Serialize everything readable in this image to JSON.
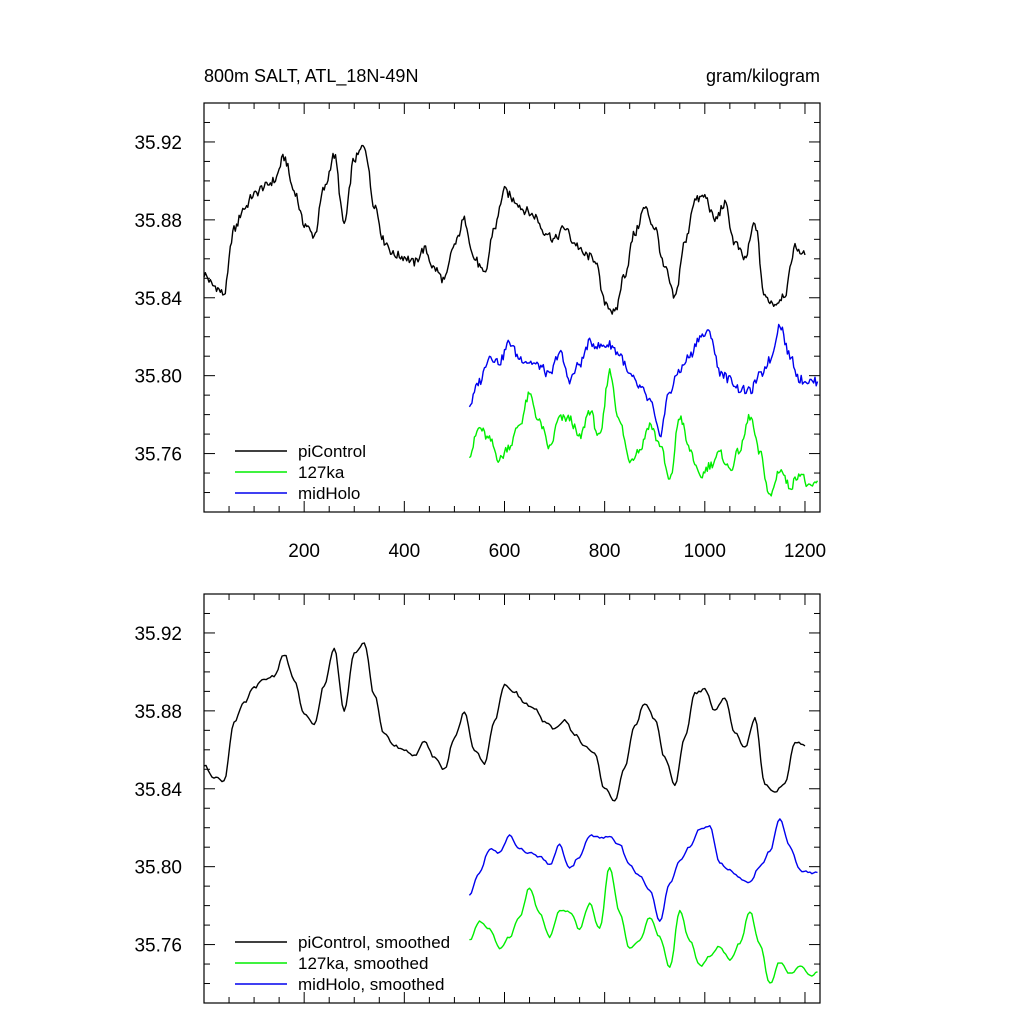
{
  "chart_data": [
    {
      "type": "line",
      "title": "800m SALT, ATL_18N-49N",
      "units": "gram/kilogram",
      "xlim": [
        0,
        1230
      ],
      "ylim": [
        35.73,
        35.94
      ],
      "xticks": [
        200,
        400,
        600,
        800,
        1000,
        1200
      ],
      "yticks": [
        35.76,
        35.8,
        35.84,
        35.88,
        35.92
      ],
      "ytick_labels": [
        "35.76",
        "35.80",
        "35.84",
        "35.88",
        "35.92"
      ],
      "xtick_labels": [
        "200",
        "400",
        "600",
        "800",
        "1000",
        "1200"
      ],
      "legend_position": "bottom-left",
      "series": [
        {
          "name": "piControl",
          "color": "#000000",
          "x": [
            0,
            20,
            40,
            60,
            80,
            100,
            120,
            140,
            160,
            180,
            200,
            220,
            240,
            260,
            280,
            300,
            320,
            340,
            360,
            380,
            400,
            420,
            440,
            460,
            480,
            500,
            520,
            540,
            560,
            580,
            600,
            620,
            640,
            660,
            680,
            700,
            720,
            740,
            760,
            780,
            800,
            820,
            840,
            860,
            880,
            900,
            920,
            940,
            960,
            980,
            1000,
            1020,
            1040,
            1060,
            1080,
            1100,
            1120,
            1140,
            1160,
            1180,
            1200
          ],
          "values": [
            35.852,
            35.846,
            35.842,
            35.875,
            35.886,
            35.893,
            35.897,
            35.9,
            35.912,
            35.895,
            35.878,
            35.872,
            35.896,
            35.913,
            35.878,
            35.911,
            35.918,
            35.888,
            35.869,
            35.862,
            35.861,
            35.858,
            35.865,
            35.855,
            35.849,
            35.867,
            35.88,
            35.86,
            35.852,
            35.876,
            35.895,
            35.89,
            35.885,
            35.882,
            35.874,
            35.87,
            35.876,
            35.868,
            35.862,
            35.86,
            35.838,
            35.832,
            35.852,
            35.873,
            35.886,
            35.876,
            35.855,
            35.84,
            35.868,
            35.89,
            35.892,
            35.88,
            35.888,
            35.868,
            35.86,
            35.878,
            35.84,
            35.837,
            35.842,
            35.866,
            35.862
          ]
        },
        {
          "name": "127ka",
          "color": "#00ee00",
          "x": [
            530,
            550,
            570,
            590,
            610,
            630,
            650,
            670,
            690,
            710,
            730,
            750,
            770,
            790,
            810,
            830,
            850,
            870,
            890,
            910,
            930,
            950,
            970,
            990,
            1010,
            1030,
            1050,
            1070,
            1090,
            1110,
            1130,
            1150,
            1170,
            1190,
            1210,
            1225
          ],
          "values": [
            35.76,
            35.773,
            35.767,
            35.757,
            35.764,
            35.775,
            35.79,
            35.776,
            35.763,
            35.778,
            35.778,
            35.768,
            35.782,
            35.768,
            35.802,
            35.776,
            35.757,
            35.762,
            35.775,
            35.765,
            35.746,
            35.779,
            35.762,
            35.748,
            35.754,
            35.76,
            35.752,
            35.762,
            35.779,
            35.76,
            35.738,
            35.752,
            35.743,
            35.75,
            35.742,
            35.746
          ]
        },
        {
          "name": "midHolo",
          "color": "#0000ee",
          "x": [
            530,
            550,
            570,
            590,
            610,
            630,
            650,
            670,
            690,
            710,
            730,
            750,
            770,
            790,
            810,
            830,
            850,
            870,
            890,
            910,
            930,
            950,
            970,
            990,
            1010,
            1030,
            1050,
            1070,
            1090,
            1110,
            1130,
            1150,
            1170,
            1190,
            1210,
            1225
          ],
          "values": [
            35.785,
            35.797,
            35.81,
            35.807,
            35.817,
            35.809,
            35.807,
            35.805,
            35.8,
            35.812,
            35.798,
            35.806,
            35.817,
            35.815,
            35.816,
            35.811,
            35.8,
            35.794,
            35.787,
            35.77,
            35.792,
            35.803,
            35.81,
            35.82,
            35.822,
            35.802,
            35.798,
            35.793,
            35.792,
            35.8,
            35.808,
            35.826,
            35.81,
            35.798,
            35.797,
            35.797
          ]
        }
      ]
    },
    {
      "type": "line",
      "xlim": [
        0,
        1230
      ],
      "ylim": [
        35.73,
        35.94
      ],
      "yticks": [
        35.76,
        35.8,
        35.84,
        35.88,
        35.92
      ],
      "ytick_labels": [
        "35.76",
        "35.80",
        "35.84",
        "35.88",
        "35.92"
      ],
      "legend_position": "bottom-left",
      "series": [
        {
          "name": "piControl, smoothed",
          "color": "#000000",
          "x": [
            0,
            20,
            40,
            60,
            80,
            100,
            120,
            140,
            160,
            180,
            200,
            220,
            240,
            260,
            280,
            300,
            320,
            340,
            360,
            380,
            400,
            420,
            440,
            460,
            480,
            500,
            520,
            540,
            560,
            580,
            600,
            620,
            640,
            660,
            680,
            700,
            720,
            740,
            760,
            780,
            800,
            820,
            840,
            860,
            880,
            900,
            920,
            940,
            960,
            980,
            1000,
            1020,
            1040,
            1060,
            1080,
            1100,
            1120,
            1140,
            1160,
            1180,
            1200
          ],
          "values": [
            35.852,
            35.846,
            35.844,
            35.874,
            35.884,
            35.892,
            35.896,
            35.898,
            35.909,
            35.896,
            35.878,
            35.873,
            35.893,
            35.912,
            35.88,
            35.91,
            35.915,
            35.888,
            35.868,
            35.862,
            35.86,
            35.857,
            35.864,
            35.856,
            35.85,
            35.866,
            35.879,
            35.86,
            35.853,
            35.875,
            35.893,
            35.89,
            35.884,
            35.881,
            35.874,
            35.871,
            35.875,
            35.868,
            35.862,
            35.858,
            35.84,
            35.834,
            35.851,
            35.872,
            35.884,
            35.876,
            35.856,
            35.842,
            35.866,
            35.889,
            35.891,
            35.88,
            35.887,
            35.869,
            35.861,
            35.876,
            35.842,
            35.838,
            35.843,
            35.864,
            35.862
          ]
        },
        {
          "name": "127ka, smoothed",
          "color": "#00ee00",
          "x": [
            530,
            550,
            570,
            590,
            610,
            630,
            650,
            670,
            690,
            710,
            730,
            750,
            770,
            790,
            810,
            830,
            850,
            870,
            890,
            910,
            930,
            950,
            970,
            990,
            1010,
            1030,
            1050,
            1070,
            1090,
            1110,
            1130,
            1150,
            1170,
            1190,
            1210,
            1225
          ],
          "values": [
            35.762,
            35.772,
            35.768,
            35.758,
            35.764,
            35.774,
            35.789,
            35.776,
            35.764,
            35.777,
            35.777,
            35.768,
            35.781,
            35.768,
            35.8,
            35.776,
            35.758,
            35.762,
            35.774,
            35.764,
            35.748,
            35.777,
            35.762,
            35.749,
            35.754,
            35.759,
            35.752,
            35.761,
            35.777,
            35.76,
            35.74,
            35.751,
            35.745,
            35.749,
            35.744,
            35.746
          ]
        },
        {
          "name": "midHolo, smoothed",
          "color": "#0000ee",
          "x": [
            530,
            550,
            570,
            590,
            610,
            630,
            650,
            670,
            690,
            710,
            730,
            750,
            770,
            790,
            810,
            830,
            850,
            870,
            890,
            910,
            930,
            950,
            970,
            990,
            1010,
            1030,
            1050,
            1070,
            1090,
            1110,
            1130,
            1150,
            1170,
            1190,
            1210,
            1225
          ],
          "values": [
            35.785,
            35.797,
            35.809,
            35.807,
            35.816,
            35.809,
            35.807,
            35.805,
            35.801,
            35.811,
            35.799,
            35.805,
            35.816,
            35.815,
            35.815,
            35.811,
            35.801,
            35.795,
            35.788,
            35.772,
            35.792,
            35.803,
            35.81,
            35.819,
            35.821,
            35.802,
            35.798,
            35.794,
            35.792,
            35.8,
            35.808,
            35.825,
            35.81,
            35.798,
            35.797,
            35.797
          ]
        }
      ]
    }
  ]
}
